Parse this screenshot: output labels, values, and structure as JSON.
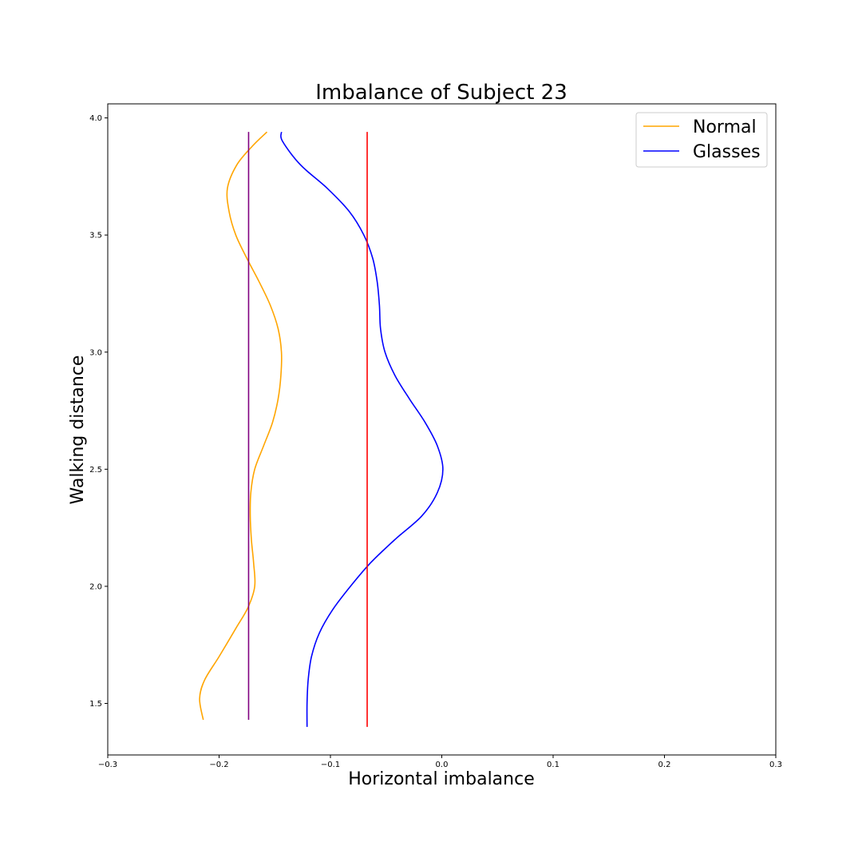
{
  "chart_data": {
    "type": "line",
    "title": "Imbalance of Subject 23",
    "xlabel": "Horizontal imbalance",
    "ylabel": "Walking distance",
    "xlim": [
      -0.3,
      0.3
    ],
    "ylim": [
      1.28,
      4.06
    ],
    "x_ticks": [
      -0.3,
      -0.2,
      -0.1,
      0.0,
      0.1,
      0.2,
      0.3
    ],
    "x_tick_labels": [
      "−0.3",
      "−0.2",
      "−0.1",
      "0.0",
      "0.1",
      "0.2",
      "0.3"
    ],
    "y_ticks": [
      1.5,
      2.0,
      2.5,
      3.0,
      3.5,
      4.0
    ],
    "y_tick_labels": [
      "1.5",
      "2.0",
      "2.5",
      "3.0",
      "3.5",
      "4.0"
    ],
    "grid": false,
    "legend_position": "top-right",
    "series": [
      {
        "name": "Normal",
        "color": "#ffa500",
        "points": [
          [
            -0.2142,
            1.43
          ],
          [
            -0.2175,
            1.52
          ],
          [
            -0.213,
            1.6
          ],
          [
            -0.2,
            1.7
          ],
          [
            -0.185,
            1.82
          ],
          [
            -0.174,
            1.91
          ],
          [
            -0.168,
            2.0
          ],
          [
            -0.169,
            2.1
          ],
          [
            -0.171,
            2.2
          ],
          [
            -0.172,
            2.3
          ],
          [
            -0.1715,
            2.4
          ],
          [
            -0.168,
            2.5
          ],
          [
            -0.16,
            2.6
          ],
          [
            -0.152,
            2.7
          ],
          [
            -0.147,
            2.8
          ],
          [
            -0.1445,
            2.9
          ],
          [
            -0.144,
            3.0
          ],
          [
            -0.147,
            3.1
          ],
          [
            -0.154,
            3.2
          ],
          [
            -0.164,
            3.3
          ],
          [
            -0.175,
            3.4
          ],
          [
            -0.185,
            3.5
          ],
          [
            -0.191,
            3.6
          ],
          [
            -0.1925,
            3.7
          ],
          [
            -0.184,
            3.8
          ],
          [
            -0.17,
            3.88
          ],
          [
            -0.157,
            3.94
          ]
        ]
      },
      {
        "name": "Glasses",
        "color": "#0000ff",
        "points": [
          [
            -0.121,
            1.4
          ],
          [
            -0.121,
            1.5
          ],
          [
            -0.12,
            1.6
          ],
          [
            -0.117,
            1.7
          ],
          [
            -0.11,
            1.8
          ],
          [
            -0.098,
            1.9
          ],
          [
            -0.082,
            2.0
          ],
          [
            -0.064,
            2.1
          ],
          [
            -0.042,
            2.2
          ],
          [
            -0.018,
            2.3
          ],
          [
            -0.004,
            2.4
          ],
          [
            0.001,
            2.5
          ],
          [
            -0.004,
            2.6
          ],
          [
            -0.015,
            2.7
          ],
          [
            -0.029,
            2.8
          ],
          [
            -0.042,
            2.9
          ],
          [
            -0.051,
            3.0
          ],
          [
            -0.055,
            3.1
          ],
          [
            -0.056,
            3.2
          ],
          [
            -0.058,
            3.3
          ],
          [
            -0.062,
            3.4
          ],
          [
            -0.07,
            3.5
          ],
          [
            -0.083,
            3.6
          ],
          [
            -0.103,
            3.7
          ],
          [
            -0.127,
            3.8
          ],
          [
            -0.143,
            3.9
          ],
          [
            -0.144,
            3.94
          ]
        ]
      },
      {
        "color": "#800080",
        "points": [
          [
            -0.1735,
            1.43
          ],
          [
            -0.1735,
            3.94
          ]
        ]
      },
      {
        "color": "#ff0000",
        "points": [
          [
            -0.067,
            1.4
          ],
          [
            -0.067,
            3.94
          ]
        ]
      }
    ]
  }
}
